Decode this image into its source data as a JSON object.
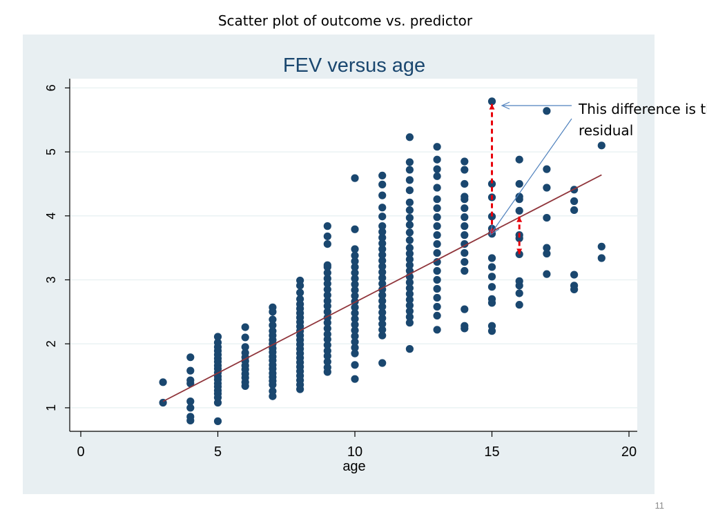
{
  "slide": {
    "title": "Scatter plot of outcome vs. predictor",
    "page_number": "11",
    "annotation_line1": "This difference is the",
    "annotation_line2": "residual"
  },
  "colors": {
    "panel_background": "#e8eff2",
    "plot_background": "#ffffff",
    "marker": "#1a476f",
    "fit_line": "#90353b",
    "residual": "#e8000b",
    "callout": "#4f81bd",
    "title": "#1a476f",
    "grid": "#eaf2f3"
  },
  "chart_data": {
    "type": "scatter",
    "title": "FEV versus age",
    "xlabel": "age",
    "ylabel": "",
    "xlim": [
      0,
      20
    ],
    "ylim": [
      0.6,
      6.15
    ],
    "xticks": [
      0,
      5,
      10,
      15,
      20
    ],
    "yticks": [
      1,
      2,
      3,
      4,
      5,
      6
    ],
    "grid": true,
    "legend": "none",
    "series": [
      {
        "columns": [
          {
            "x": 3,
            "y": [
              1.08,
              1.4
            ]
          },
          {
            "x": 4,
            "y": [
              0.8,
              0.86,
              1.0,
              1.1,
              1.38,
              1.43,
              1.58,
              1.79
            ]
          },
          {
            "x": 5,
            "y": [
              0.79,
              1.08,
              1.16,
              1.22,
              1.27,
              1.33,
              1.38,
              1.44,
              1.49,
              1.55,
              1.61,
              1.66,
              1.72,
              1.77,
              1.83,
              1.89,
              1.95,
              2.02,
              2.11
            ]
          },
          {
            "x": 6,
            "y": [
              1.34,
              1.4,
              1.47,
              1.53,
              1.6,
              1.66,
              1.73,
              1.79,
              1.86,
              1.95,
              2.1,
              2.26
            ]
          },
          {
            "x": 7,
            "y": [
              1.18,
              1.26,
              1.36,
              1.42,
              1.48,
              1.54,
              1.61,
              1.67,
              1.74,
              1.8,
              1.87,
              1.93,
              2.0,
              2.06,
              2.13,
              2.2,
              2.29,
              2.38,
              2.5,
              2.57
            ]
          },
          {
            "x": 8,
            "y": [
              1.29,
              1.36,
              1.43,
              1.5,
              1.57,
              1.64,
              1.71,
              1.78,
              1.85,
              1.92,
              1.99,
              2.06,
              2.13,
              2.2,
              2.27,
              2.34,
              2.41,
              2.48,
              2.55,
              2.62,
              2.7,
              2.8,
              2.91,
              2.99
            ]
          },
          {
            "x": 9,
            "y": [
              1.56,
              1.63,
              1.72,
              1.81,
              1.89,
              1.98,
              2.07,
              2.15,
              2.24,
              2.33,
              2.41,
              2.5,
              2.59,
              2.67,
              2.76,
              2.85,
              2.94,
              3.02,
              3.11,
              3.2,
              3.23,
              3.56,
              3.68,
              3.84
            ]
          },
          {
            "x": 10,
            "y": [
              1.45,
              1.67,
              1.85,
              1.94,
              2.03,
              2.12,
              2.21,
              2.3,
              2.39,
              2.48,
              2.57,
              2.66,
              2.75,
              2.84,
              2.93,
              3.02,
              3.11,
              3.2,
              3.29,
              3.38,
              3.48,
              3.79,
              4.59
            ]
          },
          {
            "x": 11,
            "y": [
              1.7,
              2.13,
              2.22,
              2.31,
              2.4,
              2.49,
              2.58,
              2.67,
              2.76,
              2.85,
              2.94,
              3.03,
              3.12,
              3.21,
              3.3,
              3.39,
              3.48,
              3.57,
              3.66,
              3.75,
              3.84,
              3.99,
              4.13,
              4.32,
              4.49,
              4.63
            ]
          },
          {
            "x": 12,
            "y": [
              1.92,
              2.33,
              2.42,
              2.51,
              2.6,
              2.69,
              2.78,
              2.87,
              2.96,
              3.05,
              3.14,
              3.23,
              3.32,
              3.41,
              3.5,
              3.62,
              3.74,
              3.86,
              3.97,
              4.09,
              4.21,
              4.4,
              4.56,
              4.72,
              4.84,
              5.23
            ]
          },
          {
            "x": 13,
            "y": [
              2.22,
              2.44,
              2.58,
              2.72,
              2.86,
              3.0,
              3.14,
              3.28,
              3.42,
              3.56,
              3.7,
              3.84,
              3.98,
              4.12,
              4.26,
              4.44,
              4.62,
              4.73,
              4.88,
              5.08
            ]
          },
          {
            "x": 14,
            "y": [
              2.24,
              2.28,
              2.54,
              3.14,
              3.28,
              3.42,
              3.56,
              3.7,
              3.84,
              3.98,
              4.12,
              4.26,
              4.3,
              4.5,
              4.72,
              4.85
            ]
          },
          {
            "x": 15,
            "y": [
              2.2,
              2.28,
              2.64,
              2.7,
              2.89,
              3.05,
              3.2,
              3.34,
              3.72,
              3.8,
              3.99,
              4.29,
              4.5,
              5.79
            ]
          },
          {
            "x": 16,
            "y": [
              2.61,
              2.79,
              2.91,
              2.98,
              3.4,
              3.65,
              3.7,
              4.08,
              4.26,
              4.3,
              4.5,
              4.88
            ]
          },
          {
            "x": 17,
            "y": [
              3.09,
              3.41,
              3.5,
              3.97,
              4.44,
              4.73,
              5.64
            ]
          },
          {
            "x": 18,
            "y": [
              2.85,
              2.91,
              3.08,
              4.09,
              4.23,
              4.41
            ]
          },
          {
            "x": 19,
            "y": [
              3.34,
              3.52,
              5.1
            ]
          }
        ]
      }
    ],
    "fit_line": {
      "x": [
        3,
        19
      ],
      "y": [
        1.1,
        4.64
      ]
    },
    "residuals": [
      {
        "x": 15,
        "y_observed": 5.75,
        "y_fitted": 3.7
      },
      {
        "x": 16,
        "y_observed": 3.4,
        "y_fitted": 3.99
      }
    ]
  }
}
